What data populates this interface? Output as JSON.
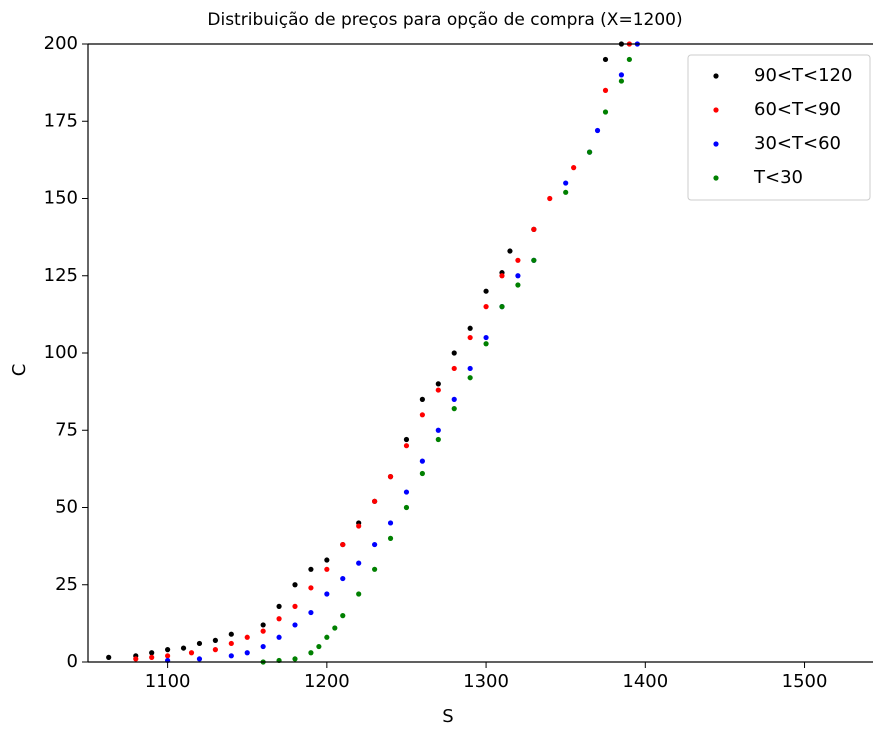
{
  "chart_data": {
    "type": "scatter",
    "title": "Distribuição de preços para opção de compra (X=1200)",
    "xlabel": "S",
    "ylabel": "C",
    "xlim": [
      1050,
      1543
    ],
    "ylim": [
      0,
      200
    ],
    "xticks": [
      1100,
      1200,
      1300,
      1400,
      1500
    ],
    "yticks": [
      0,
      25,
      50,
      75,
      100,
      125,
      150,
      175,
      200
    ],
    "legend": "upper right",
    "series": [
      {
        "name": "90<T<120",
        "color": "#000000",
        "x": [
          1063,
          1080,
          1090,
          1100,
          1110,
          1120,
          1130,
          1140,
          1160,
          1170,
          1180,
          1190,
          1200,
          1210,
          1220,
          1230,
          1240,
          1250,
          1260,
          1270,
          1280,
          1290,
          1300,
          1310,
          1315,
          1330,
          1375,
          1385
        ],
        "values": [
          1.5,
          2,
          3,
          4,
          4.5,
          6,
          7,
          9,
          12,
          18,
          25,
          30,
          33,
          38,
          45,
          52,
          60,
          72,
          85,
          90,
          100,
          108,
          120,
          126,
          133,
          140,
          195,
          200
        ]
      },
      {
        "name": "60<T<90",
        "color": "#ff0000",
        "x": [
          1080,
          1090,
          1100,
          1115,
          1130,
          1140,
          1150,
          1160,
          1170,
          1180,
          1190,
          1200,
          1210,
          1220,
          1230,
          1240,
          1250,
          1260,
          1270,
          1280,
          1290,
          1300,
          1310,
          1320,
          1330,
          1340,
          1355,
          1375,
          1390
        ],
        "values": [
          1,
          1.5,
          2,
          3,
          4,
          6,
          8,
          10,
          14,
          18,
          24,
          30,
          38,
          44,
          52,
          60,
          70,
          80,
          88,
          95,
          105,
          115,
          125,
          130,
          140,
          150,
          160,
          185,
          200
        ]
      },
      {
        "name": "30<T<60",
        "color": "#0000ff",
        "x": [
          1100,
          1120,
          1140,
          1150,
          1160,
          1170,
          1180,
          1190,
          1200,
          1210,
          1220,
          1230,
          1240,
          1250,
          1260,
          1270,
          1280,
          1290,
          1300,
          1310,
          1320,
          1330,
          1350,
          1365,
          1370,
          1385,
          1395
        ],
        "values": [
          0.5,
          1,
          2,
          3,
          5,
          8,
          12,
          16,
          22,
          27,
          32,
          38,
          45,
          55,
          65,
          75,
          85,
          95,
          105,
          115,
          125,
          130,
          155,
          165,
          172,
          190,
          200
        ]
      },
      {
        "name": "T<30",
        "color": "#008000",
        "x": [
          1160,
          1170,
          1180,
          1190,
          1195,
          1200,
          1205,
          1210,
          1220,
          1230,
          1240,
          1250,
          1260,
          1270,
          1280,
          1290,
          1300,
          1310,
          1320,
          1330,
          1350,
          1365,
          1375,
          1385,
          1390
        ],
        "values": [
          0,
          0.5,
          1,
          3,
          5,
          8,
          11,
          15,
          22,
          30,
          40,
          50,
          61,
          72,
          82,
          92,
          103,
          115,
          122,
          130,
          152,
          165,
          178,
          188,
          195
        ]
      }
    ]
  }
}
